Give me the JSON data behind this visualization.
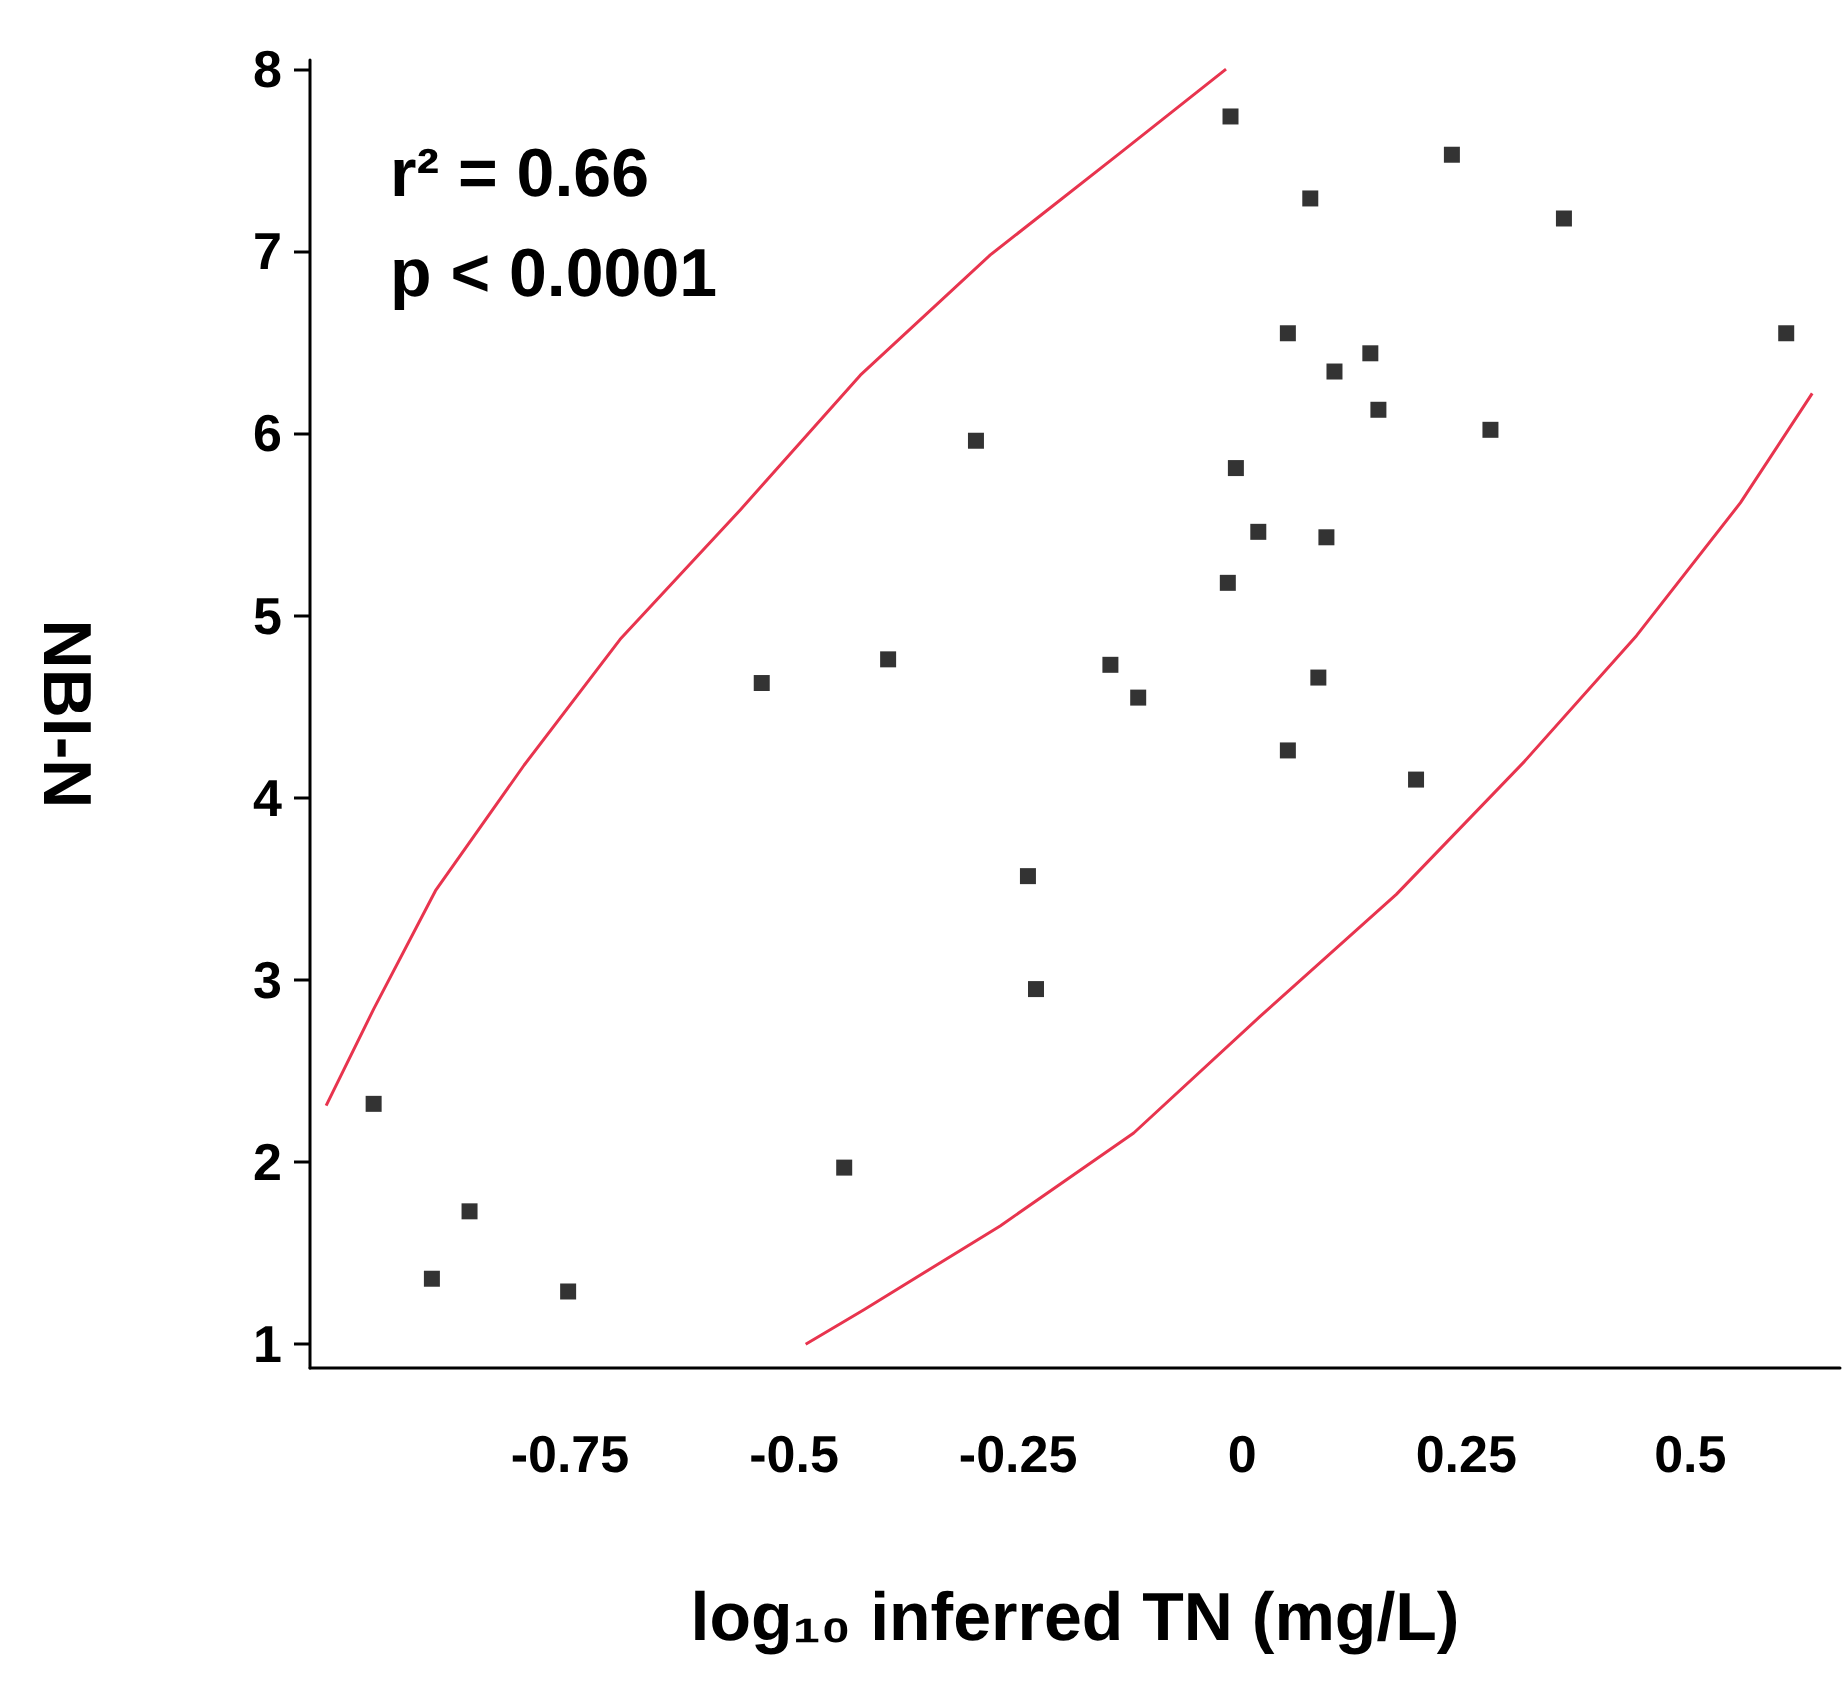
{
  "chart_data": {
    "type": "scatter",
    "xlabel": "log₁₀ inferred TN (mg/L)",
    "ylabel": "NBI-N",
    "annotations": [
      "r² = 0.66",
      "p < 0.0001"
    ],
    "xlim": [
      -1.04,
      0.667
    ],
    "ylim": [
      0.87,
      8.05
    ],
    "xticks": [
      -0.75,
      -0.5,
      -0.25,
      0,
      0.25,
      0.5
    ],
    "yticks": [
      1,
      2,
      3,
      4,
      5,
      6,
      7,
      8
    ],
    "grid": false,
    "series": [
      {
        "color": "#000000",
        "marker": "square",
        "x": [
          -0.969,
          -0.904,
          -0.862,
          -0.752,
          -0.536,
          -0.444,
          -0.395,
          -0.297,
          -0.239,
          -0.23,
          -0.147,
          -0.116,
          -0.013,
          -0.016,
          -0.007,
          0.018,
          0.051,
          0.051,
          0.076,
          0.085,
          0.094,
          0.103,
          0.143,
          0.152,
          0.194,
          0.234,
          0.277,
          0.359,
          0.607
        ],
        "values": [
          2.32,
          1.36,
          1.73,
          1.29,
          4.63,
          1.97,
          4.76,
          5.96,
          3.57,
          2.95,
          4.73,
          4.55,
          7.74,
          5.18,
          5.81,
          5.46,
          6.55,
          4.26,
          7.29,
          4.66,
          5.43,
          6.34,
          6.44,
          6.13,
          4.1,
          7.53,
          6.02,
          7.18,
          6.55
        ]
      },
      {
        "type": "line",
        "color": "#e8344e",
        "marker": "none",
        "line_style": "solid",
        "x": [
          -1.022,
          -0.969,
          -0.9,
          -0.801,
          -0.694,
          -0.56,
          -0.426,
          -0.281,
          -0.136,
          -0.018
        ],
        "values": [
          2.31,
          2.84,
          3.49,
          4.18,
          4.87,
          5.58,
          6.32,
          6.98,
          7.54,
          8.0
        ]
      },
      {
        "type": "line",
        "color": "#e8344e",
        "marker": "none",
        "line_style": "solid",
        "x": [
          -0.487,
          -0.422,
          -0.27,
          -0.121,
          0.02,
          0.172,
          0.315,
          0.44,
          0.556,
          0.636
        ],
        "values": [
          1.0,
          1.19,
          1.65,
          2.16,
          2.8,
          3.47,
          4.2,
          4.89,
          5.62,
          6.22
        ]
      }
    ]
  }
}
